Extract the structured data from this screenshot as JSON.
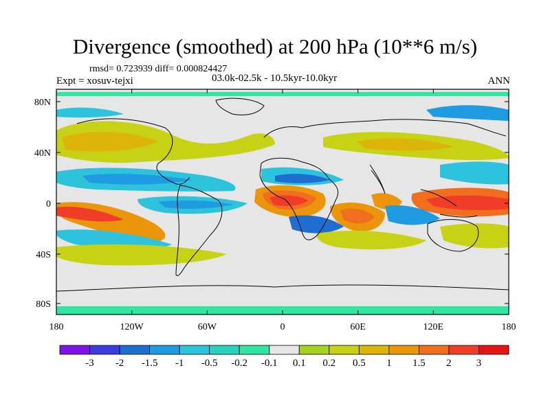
{
  "title": "Divergence (smoothed) at 200 hPa (10**6 m/s)",
  "stats": "rmsd= 0.723939 diff= 0.000824427",
  "experiment": "Expt = xosuv-tejxi",
  "period": "03.0k-02.5k - 10.5kyr-10.0kyr",
  "season": "ANN",
  "axes": {
    "lat_labels": [
      "80N",
      "40N",
      "0",
      "40S",
      "80S"
    ],
    "lon_labels": [
      "180",
      "120W",
      "60W",
      "0",
      "60E",
      "120E",
      "180"
    ]
  },
  "colorbar": {
    "colors": [
      "#7f14e6",
      "#3c3cdc",
      "#1e6ed2",
      "#1e9be1",
      "#2dc3dc",
      "#28d2be",
      "#30e6a0",
      "#e6e6e6",
      "#a5d21e",
      "#c8d214",
      "#dcb40a",
      "#eb960a",
      "#f06e1e",
      "#f03c28",
      "#e61414"
    ],
    "labels": [
      "-3",
      "-2",
      "-1.5",
      "-1",
      "-0.5",
      "-0.2",
      "-0.1",
      "0.1",
      "0.2",
      "0.5",
      "1",
      "1.5",
      "2",
      "3"
    ]
  }
}
